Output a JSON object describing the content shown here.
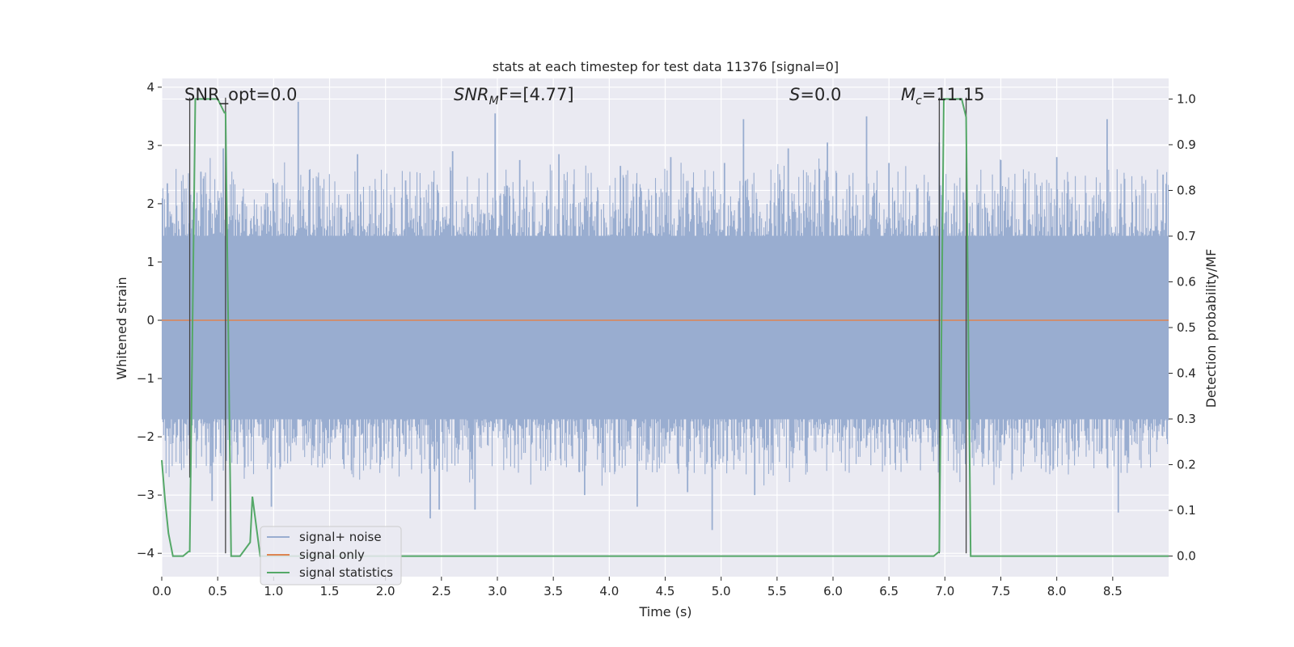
{
  "chart_data": {
    "type": "line",
    "title": "stats at each timestep for test data 11376 [signal=0]",
    "xlabel": "Time (s)",
    "ylabel": "Whitened strain",
    "y2label": "Detection probability/MF",
    "xlim": [
      0.0,
      9.0
    ],
    "ylim": [
      -4.4,
      4.15
    ],
    "y2lim": [
      -0.045,
      1.045
    ],
    "xticks": [
      "0.0",
      "0.5",
      "1.0",
      "1.5",
      "2.0",
      "2.5",
      "3.0",
      "3.5",
      "4.0",
      "4.5",
      "5.0",
      "5.5",
      "6.0",
      "6.5",
      "7.0",
      "7.5",
      "8.0",
      "8.5"
    ],
    "xtick_values": [
      0.0,
      0.5,
      1.0,
      1.5,
      2.0,
      2.5,
      3.0,
      3.5,
      4.0,
      4.5,
      5.0,
      5.5,
      6.0,
      6.5,
      7.0,
      7.5,
      8.0,
      8.5
    ],
    "yticks": [
      "−4",
      "−3",
      "−2",
      "−1",
      "0",
      "1",
      "2",
      "3",
      "4"
    ],
    "ytick_values": [
      -4,
      -3,
      -2,
      -1,
      0,
      1,
      2,
      3,
      4
    ],
    "y2ticks": [
      "0.0",
      "0.1",
      "0.2",
      "0.3",
      "0.4",
      "0.5",
      "0.6",
      "0.7",
      "0.8",
      "0.9",
      "1.0"
    ],
    "y2tick_values": [
      0.0,
      0.1,
      0.2,
      0.3,
      0.4,
      0.5,
      0.6,
      0.7,
      0.8,
      0.9,
      1.0
    ],
    "noise": {
      "name": "signal+ noise",
      "color": "#99add0",
      "duration": 9.0,
      "core_band": [
        -1.7,
        1.45
      ],
      "spike_times": [
        0.05,
        0.35,
        0.45,
        0.55,
        0.98,
        1.22,
        1.75,
        2.18,
        2.4,
        2.48,
        2.6,
        2.8,
        2.98,
        3.2,
        3.55,
        3.78,
        4.1,
        4.25,
        4.55,
        4.7,
        4.92,
        5.03,
        5.2,
        5.3,
        5.6,
        5.95,
        6.3,
        6.5,
        6.95,
        7.5,
        8.0,
        8.45,
        8.55,
        8.95
      ],
      "spike_values": [
        2.35,
        2.55,
        -3.1,
        2.95,
        -3.2,
        3.75,
        2.85,
        2.4,
        -3.4,
        -3.25,
        2.9,
        -3.25,
        3.55,
        2.75,
        2.85,
        -3.0,
        2.65,
        -3.2,
        2.8,
        -2.95,
        -3.6,
        2.7,
        3.45,
        -3.0,
        2.95,
        3.05,
        3.5,
        2.7,
        3.05,
        2.75,
        2.8,
        3.45,
        -3.3,
        2.5
      ]
    },
    "signal_only": {
      "name": "signal only",
      "color": "#dd8452",
      "values": 0
    },
    "statistics": {
      "name": "signal statistics",
      "color": "#55a868",
      "x": [
        0.0,
        0.03,
        0.06,
        0.1,
        0.19,
        0.24,
        0.25,
        0.3,
        0.5,
        0.56,
        0.57,
        0.62,
        0.7,
        0.79,
        0.81,
        0.88,
        1.0,
        2.0,
        3.0,
        4.0,
        5.0,
        6.0,
        6.9,
        6.95,
        6.99,
        7.15,
        7.19,
        7.23,
        7.3,
        8.0,
        9.0
      ],
      "y": [
        0.21,
        0.12,
        0.05,
        0.0,
        0.0,
        0.01,
        0.01,
        1.0,
        1.0,
        0.97,
        0.97,
        0.0,
        0.0,
        0.03,
        0.13,
        0.0,
        0.0,
        0.0,
        0.0,
        0.0,
        0.0,
        0.0,
        0.0,
        0.01,
        1.0,
        1.0,
        0.96,
        0.0,
        0.0,
        0.0,
        0.0
      ]
    },
    "vertical_markers": [
      {
        "x": 0.25,
        "y_top": 3.82,
        "y_bottom": -2.7
      },
      {
        "x": 0.57,
        "y_top": 3.82,
        "y_bottom": -4.0
      },
      {
        "x": 6.95,
        "y_top": 3.82,
        "y_bottom": -4.0
      },
      {
        "x": 7.19,
        "y_top": 3.82,
        "y_bottom": -4.0
      }
    ],
    "annotations": [
      {
        "id": "snr_opt",
        "text": "SNR_opt=0.0"
      },
      {
        "id": "snr_mf",
        "prefix": "SNR",
        "sub": "M",
        "suffix": "F=[4.77]"
      },
      {
        "id": "s",
        "prefix": "S",
        "suffix": "=0.0"
      },
      {
        "id": "mc",
        "prefix": "M",
        "sub": "c",
        "suffix": "=11.15"
      }
    ],
    "legend": {
      "placement": "lower-left",
      "entries": [
        "signal+ noise",
        "signal only",
        "signal statistics"
      ]
    },
    "colors": {
      "axes_bg": "#eaeaf2",
      "grid": "#ffffff",
      "marker": "#444444"
    }
  }
}
